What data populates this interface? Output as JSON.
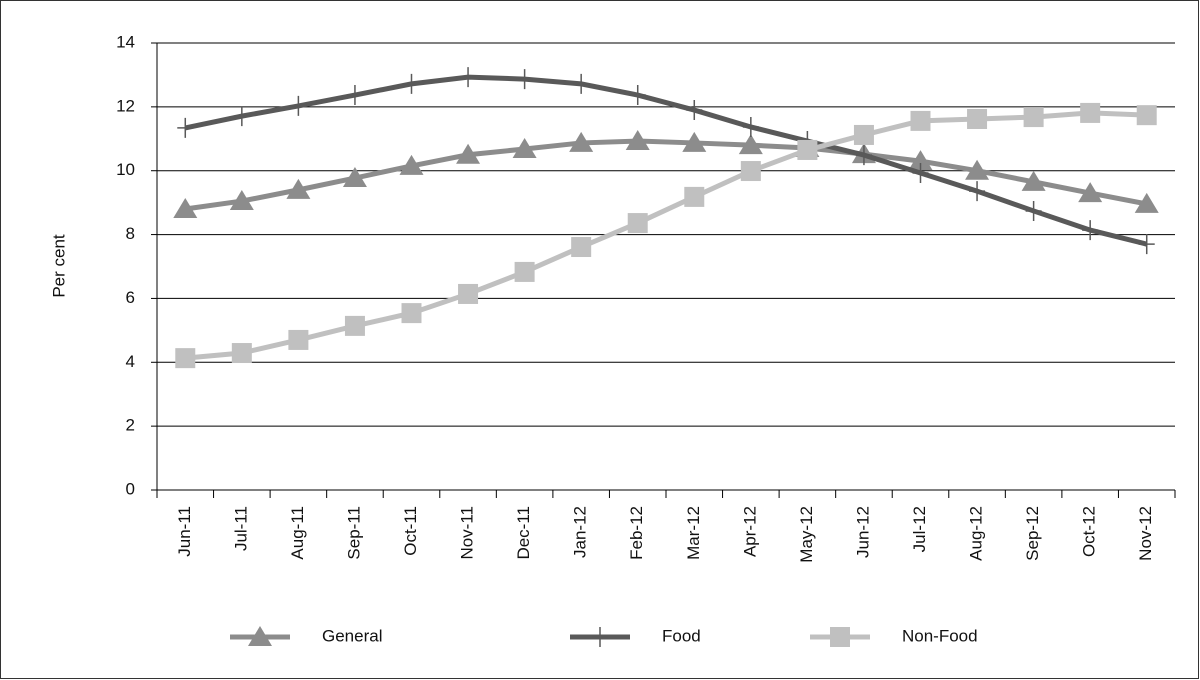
{
  "chart_data": {
    "type": "line",
    "y_label": "Per cent",
    "categories": [
      "Jun-11",
      "Jul-11",
      "Aug-11",
      "Sep-11",
      "Oct-11",
      "Nov-11",
      "Dec-11",
      "Jan-12",
      "Feb-12",
      "Mar-12",
      "Apr-12",
      "May-12",
      "Jun-12",
      "Jul-12",
      "Aug-12",
      "Sep-12",
      "Oct-12",
      "Nov-12"
    ],
    "series": [
      {
        "name": "General",
        "color": "#8c8c8c",
        "marker": "triangle",
        "values": [
          8.8,
          9.05,
          9.4,
          9.77,
          10.15,
          10.5,
          10.68,
          10.87,
          10.93,
          10.87,
          10.8,
          10.71,
          10.52,
          10.3,
          10.0,
          9.65,
          9.3,
          8.96
        ]
      },
      {
        "name": "Food",
        "color": "#595959",
        "marker": "plus",
        "values": [
          11.34,
          11.71,
          12.03,
          12.37,
          12.72,
          12.93,
          12.87,
          12.72,
          12.37,
          11.9,
          11.37,
          10.93,
          10.49,
          9.93,
          9.36,
          8.74,
          8.14,
          7.7
        ]
      },
      {
        "name": "Non-Food",
        "color": "#c0c0c0",
        "marker": "square",
        "values": [
          4.13,
          4.29,
          4.7,
          5.14,
          5.54,
          6.14,
          6.83,
          7.61,
          8.36,
          9.18,
          9.99,
          10.65,
          11.12,
          11.56,
          11.62,
          11.68,
          11.81,
          11.74
        ]
      }
    ],
    "ylim": [
      0,
      14
    ],
    "yticks": [
      0,
      2,
      4,
      6,
      8,
      10,
      12,
      14
    ],
    "grid": true,
    "legend": "bottom"
  }
}
